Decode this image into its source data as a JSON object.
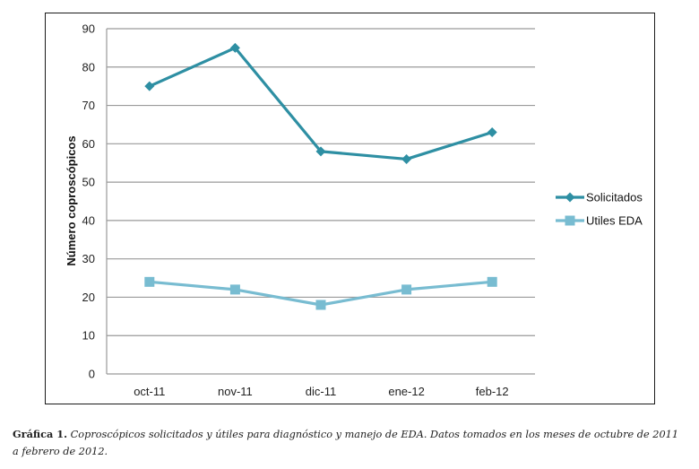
{
  "chart_data": {
    "type": "line",
    "title": "",
    "xlabel": "",
    "ylabel": "Número coproscópicos",
    "categories": [
      "oct-11",
      "nov-11",
      "dic-11",
      "ene-12",
      "feb-12"
    ],
    "ylim": [
      0,
      90
    ],
    "yticks": [
      0,
      10,
      20,
      30,
      40,
      50,
      60,
      70,
      80,
      90
    ],
    "grid": true,
    "legend_position": "right",
    "series": [
      {
        "name": "Solicitados",
        "values": [
          75,
          85,
          58,
          56,
          63
        ],
        "color": "#2e8fa3",
        "marker": "diamond"
      },
      {
        "name": "Utiles EDA",
        "values": [
          24,
          22,
          18,
          22,
          24
        ],
        "color": "#78bcd1",
        "marker": "square"
      }
    ]
  },
  "caption": {
    "label": "Gráfica 1.",
    "text": " Coproscópicos solicitados y útiles para diagnóstico y manejo de EDA. Datos tomados en los meses de octubre de 2011 a febrero de 2012."
  }
}
